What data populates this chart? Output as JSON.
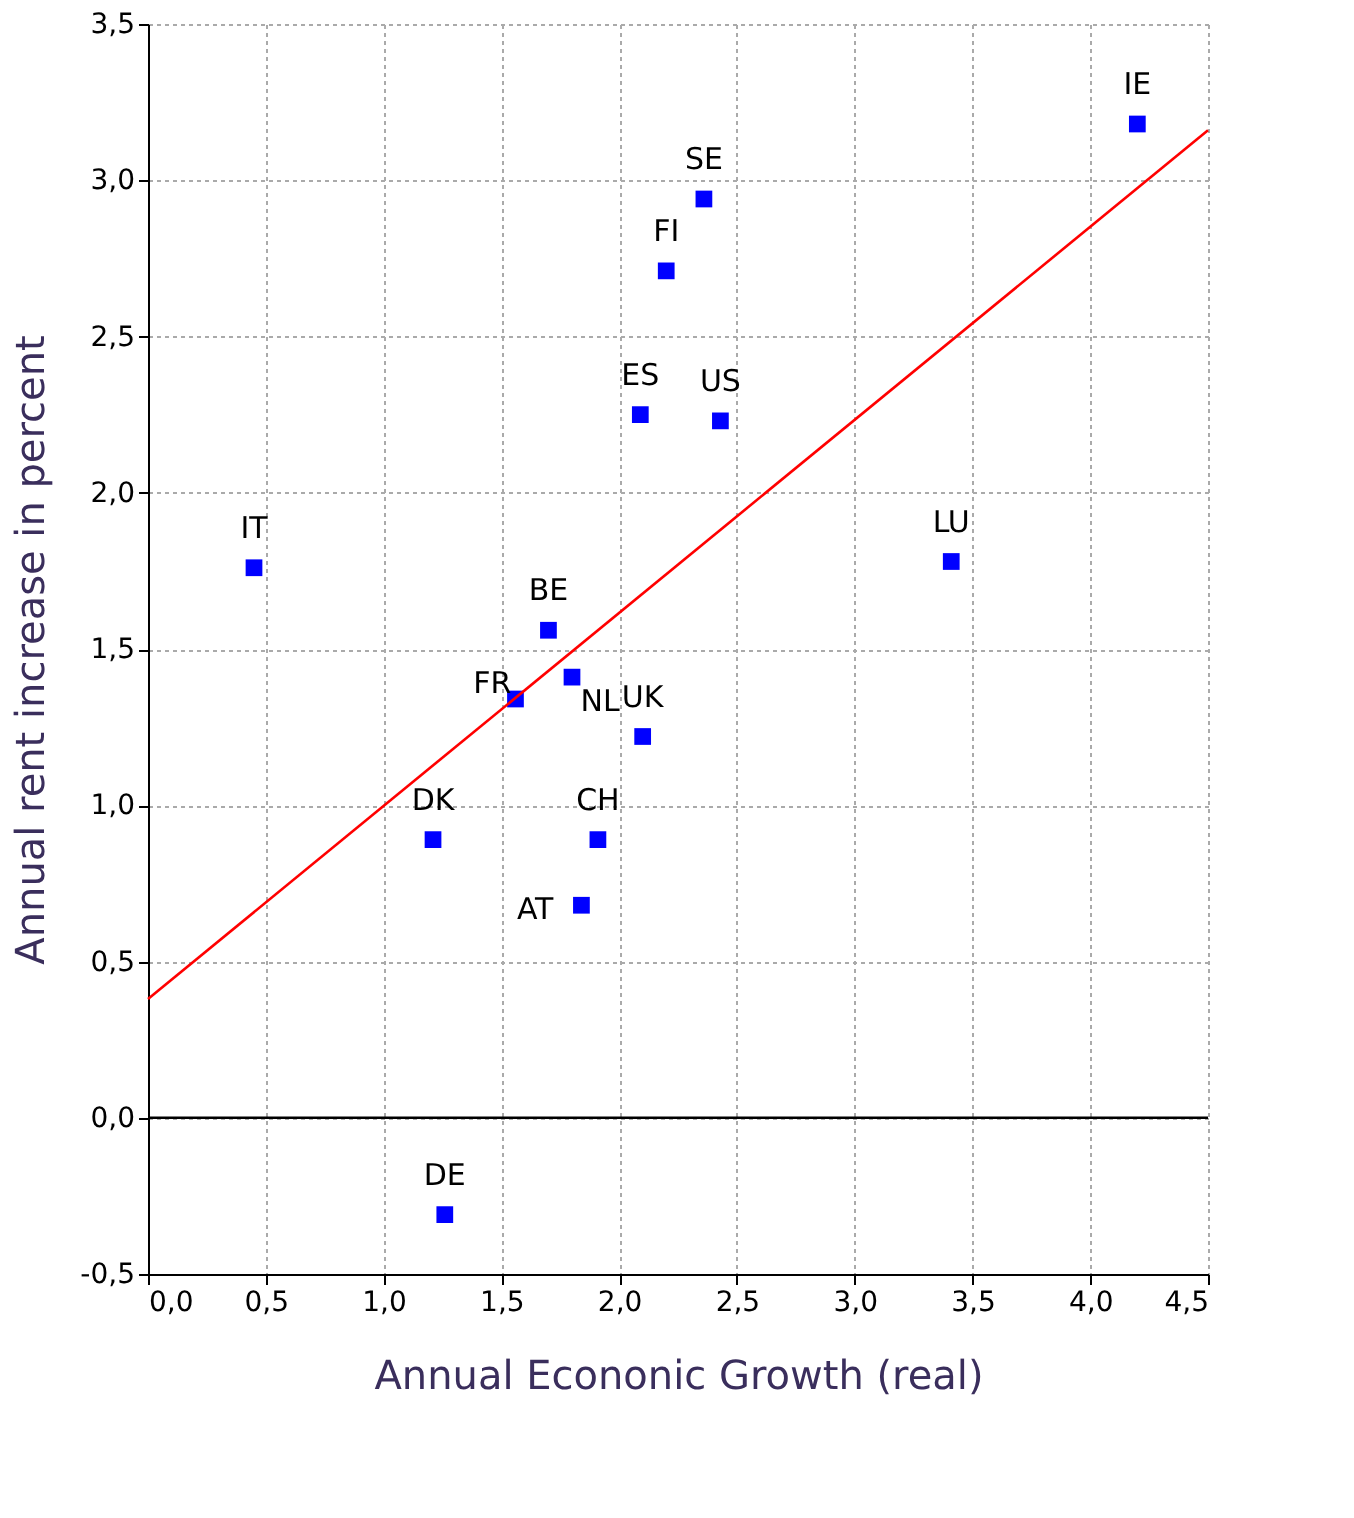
{
  "chart_data": {
    "type": "scatter",
    "xlabel": "Annual Econonic Growth (real)",
    "ylabel": "Annual rent increase in percent",
    "series": [
      {
        "color": "#0000ff",
        "marker": "square",
        "x": [
          4.2,
          2.36,
          2.2,
          2.09,
          2.43,
          0.45,
          3.41,
          1.7,
          1.8,
          1.56,
          2.1,
          1.21,
          1.91,
          1.84,
          1.26
        ],
        "values": [
          3.18,
          2.94,
          2.71,
          2.25,
          2.23,
          1.76,
          1.78,
          1.56,
          1.41,
          1.34,
          1.22,
          0.89,
          0.89,
          0.68,
          -0.31
        ]
      },
      {
        "type": "line",
        "color": "#ff0000",
        "x": [
          0,
          4.5
        ],
        "values": [
          0.38,
          3.16
        ]
      }
    ],
    "annotations": [
      {
        "text": "IE",
        "x": 4.2,
        "y": 3.18
      },
      {
        "text": "SE",
        "x": 2.36,
        "y": 2.94
      },
      {
        "text": "FI",
        "x": 2.2,
        "y": 2.71
      },
      {
        "text": "ES",
        "x": 2.09,
        "y": 2.25
      },
      {
        "text": "US",
        "x": 2.43,
        "y": 2.23
      },
      {
        "text": "IT",
        "x": 0.45,
        "y": 1.76
      },
      {
        "text": "LU",
        "x": 3.41,
        "y": 1.78
      },
      {
        "text": "BE",
        "x": 1.7,
        "y": 1.56
      },
      {
        "text": "NL",
        "x": 1.8,
        "y": 1.41
      },
      {
        "text": "FR",
        "x": 1.56,
        "y": 1.34
      },
      {
        "text": "UK",
        "x": 2.1,
        "y": 1.22
      },
      {
        "text": "DK",
        "x": 1.21,
        "y": 0.89
      },
      {
        "text": "CH",
        "x": 1.91,
        "y": 0.89
      },
      {
        "text": "AT",
        "x": 1.84,
        "y": 0.68
      },
      {
        "text": "DE",
        "x": 1.26,
        "y": -0.31
      }
    ],
    "ref_lines": [
      {
        "axis": "y",
        "value": 0,
        "color": "#000000"
      }
    ],
    "xlim": [
      0,
      4.5
    ],
    "ylim": [
      -0.5,
      3.5
    ],
    "xticks": [
      {
        "value": 0,
        "label": "0,0"
      },
      {
        "value": 0.5,
        "label": "0,5"
      },
      {
        "value": 1,
        "label": "1,0"
      },
      {
        "value": 1.5,
        "label": "1,5"
      },
      {
        "value": 2,
        "label": "2,0"
      },
      {
        "value": 2.5,
        "label": "2,5"
      },
      {
        "value": 3,
        "label": "3,0"
      },
      {
        "value": 3.5,
        "label": "3,5"
      },
      {
        "value": 4,
        "label": "4,0"
      },
      {
        "value": 4.5,
        "label": "4,5"
      }
    ],
    "yticks": [
      {
        "value": -0.5,
        "label": "-0,5"
      },
      {
        "value": 0,
        "label": "0,0"
      },
      {
        "value": 0.5,
        "label": "0,5"
      },
      {
        "value": 1,
        "label": "1,0"
      },
      {
        "value": 1.5,
        "label": "1,5"
      },
      {
        "value": 2,
        "label": "2,0"
      },
      {
        "value": 2.5,
        "label": "2,5"
      },
      {
        "value": 3,
        "label": "3,0"
      },
      {
        "value": 3.5,
        "label": "3,5"
      }
    ],
    "grid": true
  }
}
